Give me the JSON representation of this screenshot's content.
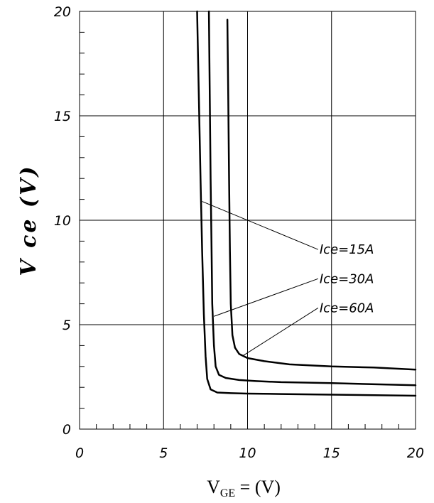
{
  "chart_data": {
    "type": "line",
    "title": "",
    "xlabel": {
      "main": "V",
      "sub": "GE",
      "rest": " = (V)"
    },
    "ylabel": "V ce  (V)",
    "xlim": [
      0,
      20
    ],
    "ylim": [
      0,
      20
    ],
    "x_ticks": [
      "0",
      "5",
      "10",
      "15",
      "20"
    ],
    "y_ticks": [
      "0",
      "5",
      "10",
      "15",
      "20"
    ],
    "grid": true,
    "series": [
      {
        "name": "Ice=15A",
        "x": [
          7.0,
          7.1,
          7.2,
          7.3,
          7.4,
          7.5,
          7.6,
          7.8,
          8.2,
          9.0,
          10.0,
          12.0,
          15.0,
          20.0
        ],
        "y": [
          20.0,
          16.0,
          12.0,
          8.5,
          5.5,
          3.5,
          2.4,
          1.9,
          1.75,
          1.72,
          1.7,
          1.68,
          1.65,
          1.6
        ]
      },
      {
        "name": "Ice=30A",
        "x": [
          7.7,
          7.75,
          7.8,
          7.85,
          7.9,
          8.0,
          8.1,
          8.3,
          8.7,
          9.5,
          10.5,
          12.0,
          15.0,
          20.0
        ],
        "y": [
          20.0,
          16.0,
          12.0,
          9.0,
          6.0,
          4.0,
          3.0,
          2.6,
          2.45,
          2.35,
          2.3,
          2.25,
          2.2,
          2.1
        ]
      },
      {
        "name": "Ice=60A",
        "x": [
          8.8,
          8.85,
          8.9,
          8.95,
          9.0,
          9.1,
          9.25,
          9.5,
          10.0,
          11.0,
          12.5,
          15.0,
          17.5,
          20.0
        ],
        "y": [
          19.6,
          16.0,
          12.0,
          8.5,
          6.0,
          4.5,
          3.9,
          3.6,
          3.4,
          3.25,
          3.1,
          3.0,
          2.95,
          2.85
        ]
      }
    ],
    "annotations": [
      {
        "label": "Ice=15A",
        "x": 14.2,
        "y": 8.6,
        "arrow_to": [
          7.3,
          10.9
        ]
      },
      {
        "label": "Ice=30A",
        "x": 14.2,
        "y": 7.2,
        "arrow_to": [
          8.0,
          5.4
        ]
      },
      {
        "label": "Ice=60A",
        "x": 14.2,
        "y": 5.8,
        "arrow_to": [
          9.7,
          3.5
        ]
      }
    ],
    "colors": {
      "line": "#000000",
      "grid": "#000000",
      "background": "#ffffff"
    }
  }
}
